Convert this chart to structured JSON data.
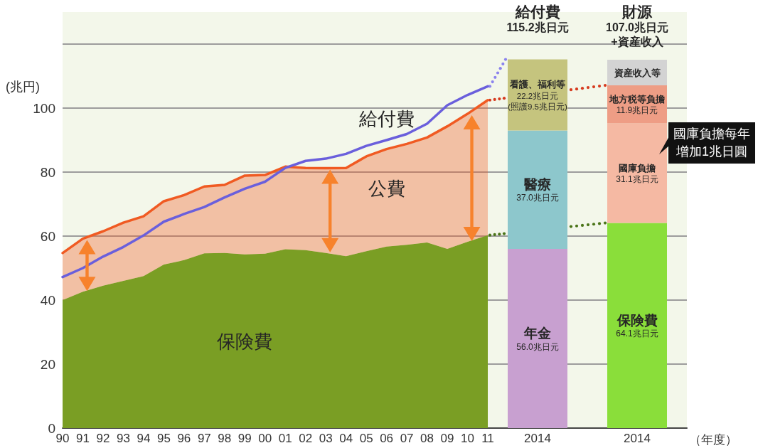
{
  "chart_data": [
    {
      "type": "area",
      "ylabel": "(兆円)",
      "categories": [
        "90",
        "91",
        "92",
        "93",
        "94",
        "95",
        "96",
        "97",
        "98",
        "99",
        "00",
        "01",
        "02",
        "03",
        "04",
        "05",
        "06",
        "07",
        "08",
        "09",
        "10",
        "11"
      ],
      "ylim": [
        0,
        130
      ],
      "yticks": [
        0,
        20,
        40,
        60,
        80,
        100,
        {
          "value": 120,
          "label": null
        }
      ],
      "grid": "y",
      "stacked": true,
      "series": [
        {
          "name": "保険費",
          "color": "#7a9e24",
          "values": [
            40.0,
            42.6,
            44.5,
            46.0,
            47.5,
            51.1,
            52.5,
            54.6,
            54.7,
            54.3,
            54.5,
            55.9,
            55.6,
            54.7,
            53.7,
            55.3,
            56.7,
            57.3,
            58.0,
            56.0,
            58.2,
            60.3
          ]
        },
        {
          "name": "公費",
          "color": "#f05a22",
          "line_style": "solid",
          "values": [
            14.7,
            16.6,
            17.0,
            18.2,
            18.7,
            19.8,
            20.3,
            20.9,
            21.3,
            24.6,
            24.6,
            25.8,
            25.7,
            26.5,
            27.6,
            29.6,
            30.5,
            31.5,
            32.8,
            38.3,
            40.0,
            42.2
          ]
        },
        {
          "type": "line",
          "name": "給付費",
          "color": "#6a5fdc",
          "values": [
            47.2,
            50.0,
            53.6,
            56.6,
            60.2,
            64.5,
            66.9,
            69.1,
            72.1,
            74.8,
            77.0,
            81.3,
            83.5,
            84.2,
            85.7,
            88.2,
            90.0,
            91.9,
            95.1,
            100.9,
            104.1,
            106.8
          ]
        }
      ]
    },
    {
      "type": "bar",
      "xlabel": "（年度）",
      "categories": [
        "2014",
        "2014"
      ],
      "ylim": [
        0,
        130
      ],
      "yticks": [
        0,
        20,
        40,
        60,
        80,
        100,
        {
          "value": 120,
          "label": null
        }
      ],
      "tick_labels": "x",
      "grid": "y",
      "stacked": true,
      "series": [
        {
          "name": "年金",
          "color": "#c8a0d0",
          "values": [
            56.0,
            null
          ],
          "value_labels": [
            "56.0兆日元",
            null
          ]
        },
        {
          "name": "醫療",
          "color": "#8dc7cc",
          "values": [
            37.0,
            null
          ],
          "value_labels": [
            "37.0兆日元",
            null
          ]
        },
        {
          "name": "看護、福利等",
          "color": "#c5c47e",
          "values": [
            22.2,
            null
          ],
          "value_labels": [
            "22.2兆日元\n(照護9.5兆日元)",
            null
          ]
        },
        {
          "name": "保険費",
          "color": "#8ade3a",
          "values": [
            null,
            64.1
          ],
          "value_labels": [
            null,
            "64.1兆日元"
          ]
        },
        {
          "name": "國庫負擔",
          "color": "#f5b9a3",
          "values": [
            null,
            31.1
          ],
          "value_labels": [
            null,
            "31.1兆日元"
          ]
        },
        {
          "name": "地方税等負擔",
          "color": "#ee9d85",
          "values": [
            null,
            11.9
          ],
          "value_labels": [
            null,
            "11.9兆日元"
          ]
        },
        {
          "name": "資産收入等",
          "color": "#d3d3d3",
          "values": [
            null,
            8
          ]
        }
      ],
      "totals": [
        "給付費\n115.2兆日元",
        "財源\n107.0兆日元\n+資産收入"
      ],
      "annotations": [
        "國庫負擔每年增加1兆日圓"
      ]
    }
  ]
}
